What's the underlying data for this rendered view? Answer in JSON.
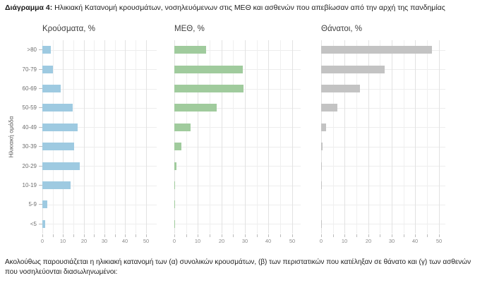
{
  "page": {
    "heading_bold": "Διάγραμμα 4:",
    "heading_rest": " Ηλικιακή Κατανομή κρουσμάτων, νοσηλευόμενων στις ΜΕΘ και ασθενών που απεβίωσαν από την αρχή της πανδημίας",
    "footer_text": "Ακολούθως παρουσιάζεται η ηλικιακή κατανομή των (α) συνολικών κρουσμάτων, (β) των περιστατικών που κατέληξαν σε θάνατο και (γ) των ασθενών που νοσηλεύονται διασωληνωμένοι:"
  },
  "axis": {
    "y_title": "Ηλικιακή ομάδα",
    "categories": [
      ">80",
      "70-79",
      "60-69",
      "50-59",
      "40-49",
      "30-39",
      "20-29",
      "10-19",
      "5-9",
      "<5"
    ],
    "x_ticks": [
      0,
      10,
      20,
      30,
      40,
      50
    ],
    "x_grid_step": 5,
    "xlim": [
      0,
      50
    ]
  },
  "chart_data": [
    {
      "type": "bar",
      "orientation": "horizontal",
      "title": "Κρούσματα, %",
      "categories": [
        ">80",
        "70-79",
        "60-69",
        "50-59",
        "40-49",
        "30-39",
        "20-29",
        "10-19",
        "5-9",
        "<5"
      ],
      "values": [
        4,
        5,
        9,
        14.5,
        17,
        15.5,
        18,
        13.5,
        2.5,
        1.5
      ],
      "xlim": [
        0,
        50
      ],
      "grid": true,
      "color": "#9ecae1"
    },
    {
      "type": "bar",
      "orientation": "horizontal",
      "title": "ΜΕΘ, %",
      "categories": [
        ">80",
        "70-79",
        "60-69",
        "50-59",
        "40-49",
        "30-39",
        "20-29",
        "10-19",
        "5-9",
        "<5"
      ],
      "values": [
        13.5,
        29,
        29.5,
        18,
        7,
        3,
        1,
        0.3,
        0.2,
        0.2
      ],
      "xlim": [
        0,
        50
      ],
      "grid": true,
      "color": "#a0cb9d"
    },
    {
      "type": "bar",
      "orientation": "horizontal",
      "title": "Θάνατοι, %",
      "categories": [
        ">80",
        "70-79",
        "60-69",
        "50-59",
        "40-49",
        "30-39",
        "20-29",
        "10-19",
        "5-9",
        "<5"
      ],
      "values": [
        47,
        27,
        16.5,
        7,
        2,
        0.5,
        0.2,
        0.2,
        0,
        0.2
      ],
      "xlim": [
        0,
        50
      ],
      "grid": true,
      "color": "#c3c3c3"
    }
  ]
}
